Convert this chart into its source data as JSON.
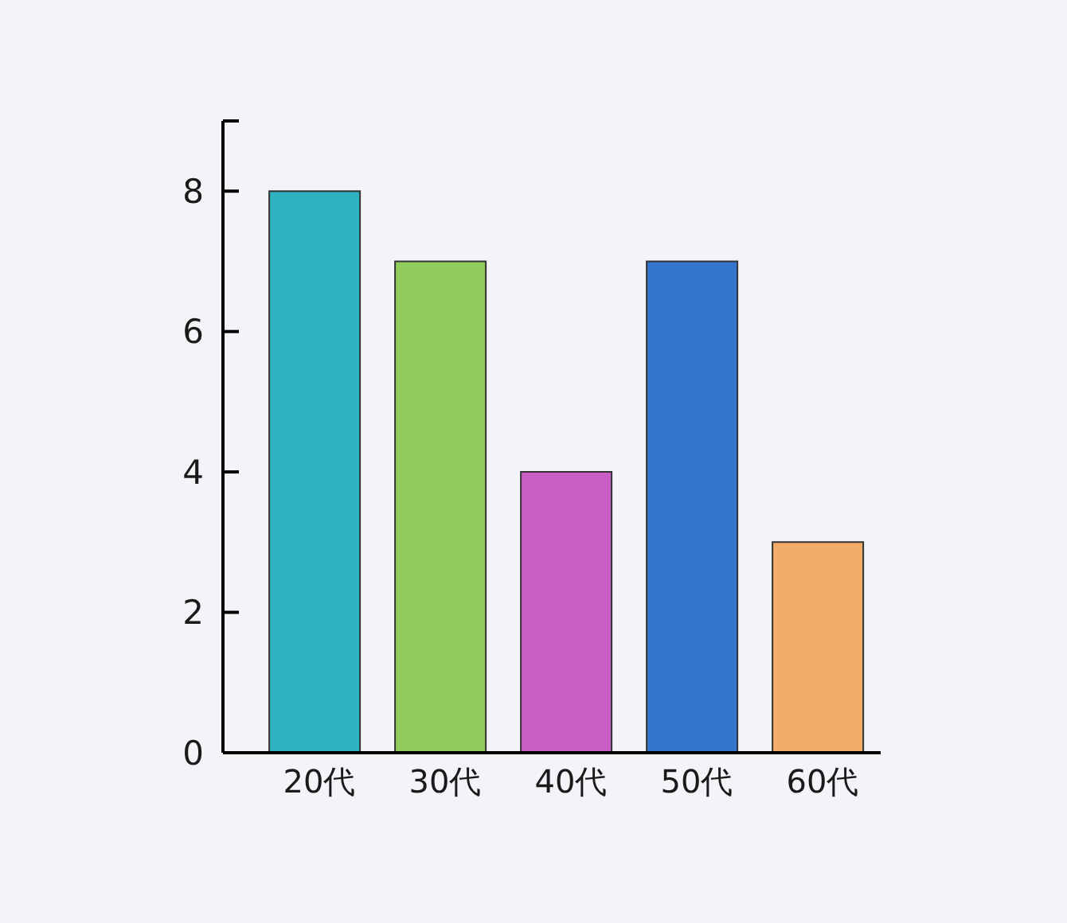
{
  "chart_data": {
    "type": "bar",
    "categories": [
      "20代",
      "30代",
      "40代",
      "50代",
      "60代"
    ],
    "values": [
      8,
      7,
      4,
      7,
      3
    ],
    "colors": [
      "#2fb2c1",
      "#92cc5e",
      "#c95fc5",
      "#3375cc",
      "#f3ad6a"
    ],
    "ylim": [
      0,
      9
    ],
    "yticks": [
      0,
      2,
      4,
      6,
      8,
      {
        "value": 9,
        "label": null
      }
    ]
  }
}
